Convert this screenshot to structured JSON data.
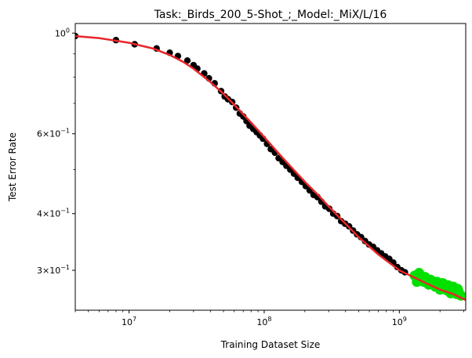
{
  "chart_data": {
    "type": "scatter",
    "title": "Task:_Birds_200_5-Shot_;_Model:_MiX/L/16",
    "xlabel": "Training Dataset Size",
    "ylabel": "Test Error Rate",
    "x_scale": "log",
    "y_scale": "log",
    "xlim": [
      4000000,
      3100000000
    ],
    "ylim": [
      0.245,
      1.05
    ],
    "x_ticks": [
      {
        "value": 10000000,
        "base": "10",
        "exp": "7"
      },
      {
        "value": 100000000,
        "base": "10",
        "exp": "8"
      },
      {
        "value": 1000000000,
        "base": "10",
        "exp": "9"
      }
    ],
    "y_ticks": [
      {
        "value": 1.0,
        "mant": "",
        "base": "10",
        "exp": "0"
      },
      {
        "value": 0.6,
        "mant": "6×",
        "base": "10",
        "exp": "−1"
      },
      {
        "value": 0.4,
        "mant": "4×",
        "base": "10",
        "exp": "−1"
      },
      {
        "value": 0.3,
        "mant": "3×",
        "base": "10",
        "exp": "−1"
      }
    ],
    "colors": {
      "fit": "#e8262a",
      "train": "#000000",
      "holdout": "#00e000"
    },
    "fit_curve": {
      "x": [
        4000000,
        6000000,
        10000000,
        15000000,
        20000000,
        25000000,
        30000000,
        40000000,
        50000000,
        60000000,
        80000000,
        100000000,
        130000000,
        160000000,
        200000000,
        250000000,
        300000000,
        400000000,
        500000000,
        700000000,
        1000000000,
        1500000000,
        2000000000,
        2500000000,
        3100000000
      ],
      "y": [
        0.985,
        0.975,
        0.952,
        0.925,
        0.895,
        0.865,
        0.835,
        0.78,
        0.735,
        0.695,
        0.635,
        0.59,
        0.54,
        0.505,
        0.47,
        0.44,
        0.415,
        0.38,
        0.355,
        0.325,
        0.3,
        0.283,
        0.272,
        0.266,
        0.258
      ]
    },
    "series": [
      {
        "points": [
          [
            4000000,
            0.985
          ],
          [
            8000000,
            0.965
          ],
          [
            11000000,
            0.945
          ],
          [
            16000000,
            0.925
          ],
          [
            20000000,
            0.905
          ],
          [
            23000000,
            0.89
          ],
          [
            27000000,
            0.87
          ],
          [
            30000000,
            0.85
          ],
          [
            32000000,
            0.835
          ],
          [
            36000000,
            0.815
          ],
          [
            39000000,
            0.795
          ],
          [
            43000000,
            0.775
          ],
          [
            48000000,
            0.745
          ],
          [
            51000000,
            0.725
          ],
          [
            54000000,
            0.715
          ],
          [
            58000000,
            0.705
          ],
          [
            62000000,
            0.685
          ],
          [
            66000000,
            0.665
          ],
          [
            70000000,
            0.655
          ],
          [
            74000000,
            0.64
          ],
          [
            78000000,
            0.625
          ],
          [
            83000000,
            0.615
          ],
          [
            88000000,
            0.605
          ],
          [
            93000000,
            0.595
          ],
          [
            98000000,
            0.585
          ],
          [
            105000000,
            0.57
          ],
          [
            112000000,
            0.555
          ],
          [
            120000000,
            0.545
          ],
          [
            128000000,
            0.53
          ],
          [
            137000000,
            0.52
          ],
          [
            146000000,
            0.51
          ],
          [
            156000000,
            0.5
          ],
          [
            166000000,
            0.49
          ],
          [
            177000000,
            0.48
          ],
          [
            190000000,
            0.47
          ],
          [
            203000000,
            0.46
          ],
          [
            217000000,
            0.45
          ],
          [
            232000000,
            0.44
          ],
          [
            248000000,
            0.435
          ],
          [
            265000000,
            0.425
          ],
          [
            283000000,
            0.415
          ],
          [
            303000000,
            0.41
          ],
          [
            324000000,
            0.4
          ],
          [
            347000000,
            0.395
          ],
          [
            371000000,
            0.385
          ],
          [
            397000000,
            0.38
          ],
          [
            425000000,
            0.375
          ],
          [
            455000000,
            0.367
          ],
          [
            487000000,
            0.36
          ],
          [
            521000000,
            0.355
          ],
          [
            558000000,
            0.348
          ],
          [
            597000000,
            0.342
          ],
          [
            640000000,
            0.338
          ],
          [
            685000000,
            0.332
          ],
          [
            734000000,
            0.327
          ],
          [
            786000000,
            0.322
          ],
          [
            842000000,
            0.318
          ],
          [
            902000000,
            0.312
          ],
          [
            966000000,
            0.305
          ],
          [
            1035000000,
            0.3
          ],
          [
            1100000000,
            0.297
          ]
        ]
      },
      {
        "points": [
          [
            1300000000,
            0.292
          ],
          [
            1380000000,
            0.288
          ],
          [
            1450000000,
            0.285
          ],
          [
            1520000000,
            0.283
          ],
          [
            1600000000,
            0.287
          ],
          [
            1680000000,
            0.28
          ],
          [
            1760000000,
            0.284
          ],
          [
            1850000000,
            0.276
          ],
          [
            1950000000,
            0.279
          ],
          [
            2050000000,
            0.274
          ],
          [
            2150000000,
            0.277
          ],
          [
            2250000000,
            0.271
          ],
          [
            2350000000,
            0.274
          ],
          [
            2450000000,
            0.268
          ],
          [
            2550000000,
            0.271
          ],
          [
            2650000000,
            0.266
          ],
          [
            2750000000,
            0.269
          ],
          [
            2850000000,
            0.264
          ],
          [
            1400000000,
            0.296
          ],
          [
            1550000000,
            0.29
          ],
          [
            1700000000,
            0.286
          ],
          [
            1900000000,
            0.283
          ],
          [
            2100000000,
            0.281
          ],
          [
            2300000000,
            0.278
          ],
          [
            2500000000,
            0.276
          ],
          [
            2700000000,
            0.273
          ],
          [
            1650000000,
            0.279
          ],
          [
            2000000000,
            0.272
          ],
          [
            2400000000,
            0.267
          ],
          [
            1350000000,
            0.283
          ]
        ]
      }
    ]
  }
}
